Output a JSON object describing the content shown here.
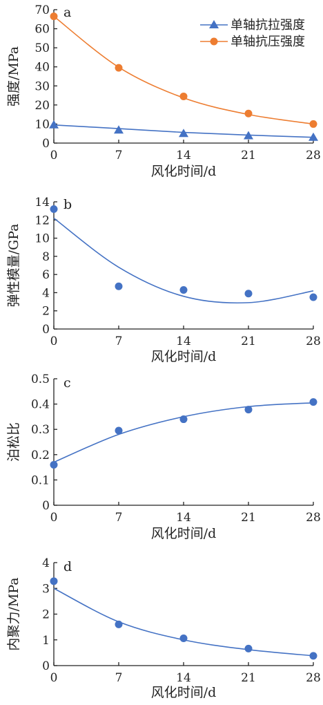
{
  "chart_data": [
    {
      "type": "line",
      "panel_label": "a",
      "xlabel": "风化时间/d",
      "ylabel": "强度/MPa",
      "x": [
        0,
        7,
        14,
        21,
        28
      ],
      "xlim": [
        0,
        28
      ],
      "ylim": [
        0,
        70
      ],
      "yticks": [
        0,
        10,
        20,
        30,
        40,
        50,
        60,
        70
      ],
      "legend_position": "top-right",
      "series": [
        {
          "name": "单轴抗拉强度",
          "marker": "triangle",
          "color": "#4472c4",
          "values": [
            9.5,
            6.8,
            5.0,
            3.8,
            3.0
          ],
          "fit": [
            9.5,
            7.6,
            5.6,
            4.2,
            3.0
          ]
        },
        {
          "name": "单轴抗压强度",
          "marker": "circle",
          "color": "#ed7d31",
          "values": [
            66.5,
            39.5,
            24.5,
            15.5,
            10.0
          ],
          "fit": [
            66.5,
            39.8,
            23.7,
            15.0,
            10.0
          ]
        }
      ]
    },
    {
      "type": "scatter",
      "panel_label": "b",
      "xlabel": "风化时间/d",
      "ylabel": "弹性模量/GPa",
      "x": [
        0,
        7,
        14,
        21,
        28
      ],
      "xlim": [
        0,
        28
      ],
      "ylim": [
        0,
        14
      ],
      "yticks": [
        0,
        2,
        4,
        6,
        8,
        10,
        12,
        14
      ],
      "series": [
        {
          "marker": "circle",
          "color": "#4472c4",
          "values": [
            13.2,
            4.7,
            4.3,
            3.9,
            3.5
          ],
          "fit": [
            12.2,
            6.8,
            3.6,
            2.9,
            4.2
          ]
        }
      ]
    },
    {
      "type": "scatter",
      "panel_label": "c",
      "xlabel": "风化时间/d",
      "ylabel": "泊松比",
      "x": [
        0,
        7,
        14,
        21,
        28
      ],
      "xlim": [
        0,
        28
      ],
      "ylim": [
        0,
        0.5
      ],
      "yticks": [
        0,
        0.1,
        0.2,
        0.3,
        0.4,
        0.5
      ],
      "series": [
        {
          "marker": "circle",
          "color": "#4472c4",
          "values": [
            0.16,
            0.295,
            0.34,
            0.378,
            0.408
          ],
          "fit": [
            0.17,
            0.28,
            0.35,
            0.39,
            0.405
          ]
        }
      ]
    },
    {
      "type": "scatter",
      "panel_label": "d",
      "xlabel": "风化时间/d",
      "ylabel": "内聚力/MPa",
      "x": [
        0,
        7,
        14,
        21,
        28
      ],
      "xlim": [
        0,
        28
      ],
      "ylim": [
        0,
        4
      ],
      "yticks": [
        0,
        1,
        2,
        3,
        4
      ],
      "series": [
        {
          "marker": "circle",
          "color": "#4472c4",
          "values": [
            3.28,
            1.6,
            1.06,
            0.66,
            0.38
          ],
          "fit": [
            3.0,
            1.7,
            1.0,
            0.62,
            0.38
          ]
        }
      ]
    }
  ]
}
